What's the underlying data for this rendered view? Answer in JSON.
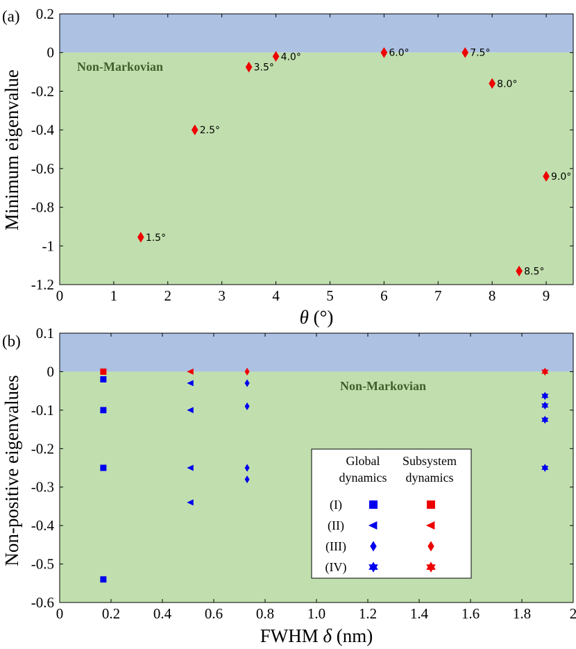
{
  "colors": {
    "markovian_region": "#adc1e3",
    "non_markovian_region": "#c1dfae",
    "region_text": "#3f5f2a",
    "global_marker": "#0000ee",
    "subsystem_marker": "#ee0000",
    "point_marker": "#ee0000"
  },
  "chart_data": [
    {
      "type": "scatter",
      "panel_label": "(a)",
      "xlabel_symbol": "θ",
      "xlabel_unit": " (°)",
      "ylabel": "Minimum eigenvalue",
      "xlim": [
        0,
        9.5
      ],
      "ylim": [
        -1.2,
        0.2
      ],
      "xticks": [
        0,
        1,
        2,
        3,
        4,
        5,
        6,
        7,
        8,
        9
      ],
      "xtick_labels": [
        "0",
        "1",
        "2",
        "3",
        "4",
        "5",
        "6",
        "7",
        "8",
        "9"
      ],
      "yticks": [
        0.2,
        0,
        -0.2,
        -0.4,
        -0.6,
        -0.8,
        -1,
        -1.2
      ],
      "ytick_labels": [
        "0.2",
        "0",
        "-0.2",
        "-0.4",
        "-0.6",
        "-0.8",
        "-1",
        "-1.2"
      ],
      "region_label": "Non-Markovian",
      "marker": "diamond",
      "points": [
        {
          "x": 1.5,
          "y": -0.955,
          "label": "1.5°"
        },
        {
          "x": 2.5,
          "y": -0.4,
          "label": "2.5°"
        },
        {
          "x": 3.5,
          "y": -0.075,
          "label": "3.5°"
        },
        {
          "x": 4.0,
          "y": -0.02,
          "label": "4.0°"
        },
        {
          "x": 6.0,
          "y": 0.0,
          "label": "6.0°"
        },
        {
          "x": 7.5,
          "y": 0.0,
          "label": "7.5°"
        },
        {
          "x": 8.0,
          "y": -0.16,
          "label": "8.0°"
        },
        {
          "x": 9.0,
          "y": -0.64,
          "label": "9.0°"
        },
        {
          "x": 8.5,
          "y": -1.13,
          "label": "8.5°"
        }
      ]
    },
    {
      "type": "scatter",
      "panel_label": "(b)",
      "xlabel_prefix": "FWHM ",
      "xlabel_symbol": "δ",
      "xlabel_unit": " (nm)",
      "ylabel": "Non-positive eigenvalues",
      "xlim": [
        0,
        2
      ],
      "ylim": [
        -0.6,
        0.1
      ],
      "xticks": [
        0,
        0.2,
        0.4,
        0.6,
        0.8,
        1.0,
        1.2,
        1.4,
        1.6,
        1.8,
        2
      ],
      "xtick_labels": [
        "0",
        "0.2",
        "0.4",
        "0.6",
        "0.8",
        "1.0",
        "1.2",
        "1.4",
        "1.6",
        "1.8",
        "2"
      ],
      "yticks": [
        0.1,
        0,
        -0.1,
        -0.2,
        -0.3,
        -0.4,
        -0.5,
        -0.6
      ],
      "ytick_labels": [
        "0.1",
        "0",
        "-0.1",
        "-0.2",
        "-0.3",
        "-0.4",
        "-0.5",
        "-0.6"
      ],
      "region_label": "Non-Markovian",
      "series": [
        {
          "name": "(I) Global dynamics",
          "group": "global",
          "marker": "square",
          "x": 0.17,
          "values": [
            -0.02,
            -0.1,
            -0.25,
            -0.54
          ]
        },
        {
          "name": "(I) Subsystem dynamics",
          "group": "subsystem",
          "marker": "square",
          "x": 0.17,
          "values": [
            0.0
          ]
        },
        {
          "name": "(II) Global dynamics",
          "group": "global",
          "marker": "triangle-left",
          "x": 0.51,
          "values": [
            -0.03,
            -0.1,
            -0.25,
            -0.34
          ]
        },
        {
          "name": "(II) Subsystem dynamics",
          "group": "subsystem",
          "marker": "triangle-left",
          "x": 0.51,
          "values": [
            0.0
          ]
        },
        {
          "name": "(III) Global dynamics",
          "group": "global",
          "marker": "diamond",
          "x": 0.73,
          "values": [
            -0.03,
            -0.09,
            -0.25,
            -0.28
          ]
        },
        {
          "name": "(III) Subsystem dynamics",
          "group": "subsystem",
          "marker": "diamond",
          "x": 0.73,
          "values": [
            0.0
          ]
        },
        {
          "name": "(IV) Global dynamics",
          "group": "global",
          "marker": "hexagram",
          "x": 1.89,
          "values": [
            -0.063,
            -0.088,
            -0.125,
            -0.25
          ]
        },
        {
          "name": "(IV) Subsystem dynamics",
          "group": "subsystem",
          "marker": "hexagram",
          "x": 1.89,
          "values": [
            0.0
          ]
        }
      ],
      "legend": {
        "header_global": [
          "Global",
          "dynamics"
        ],
        "header_subsystem": [
          "Subsystem",
          "dynamics"
        ],
        "rows": [
          {
            "label": "(I)",
            "marker": "square"
          },
          {
            "label": "(II)",
            "marker": "triangle-left"
          },
          {
            "label": "(III)",
            "marker": "diamond"
          },
          {
            "label": "(IV)",
            "marker": "hexagram"
          }
        ]
      }
    }
  ]
}
